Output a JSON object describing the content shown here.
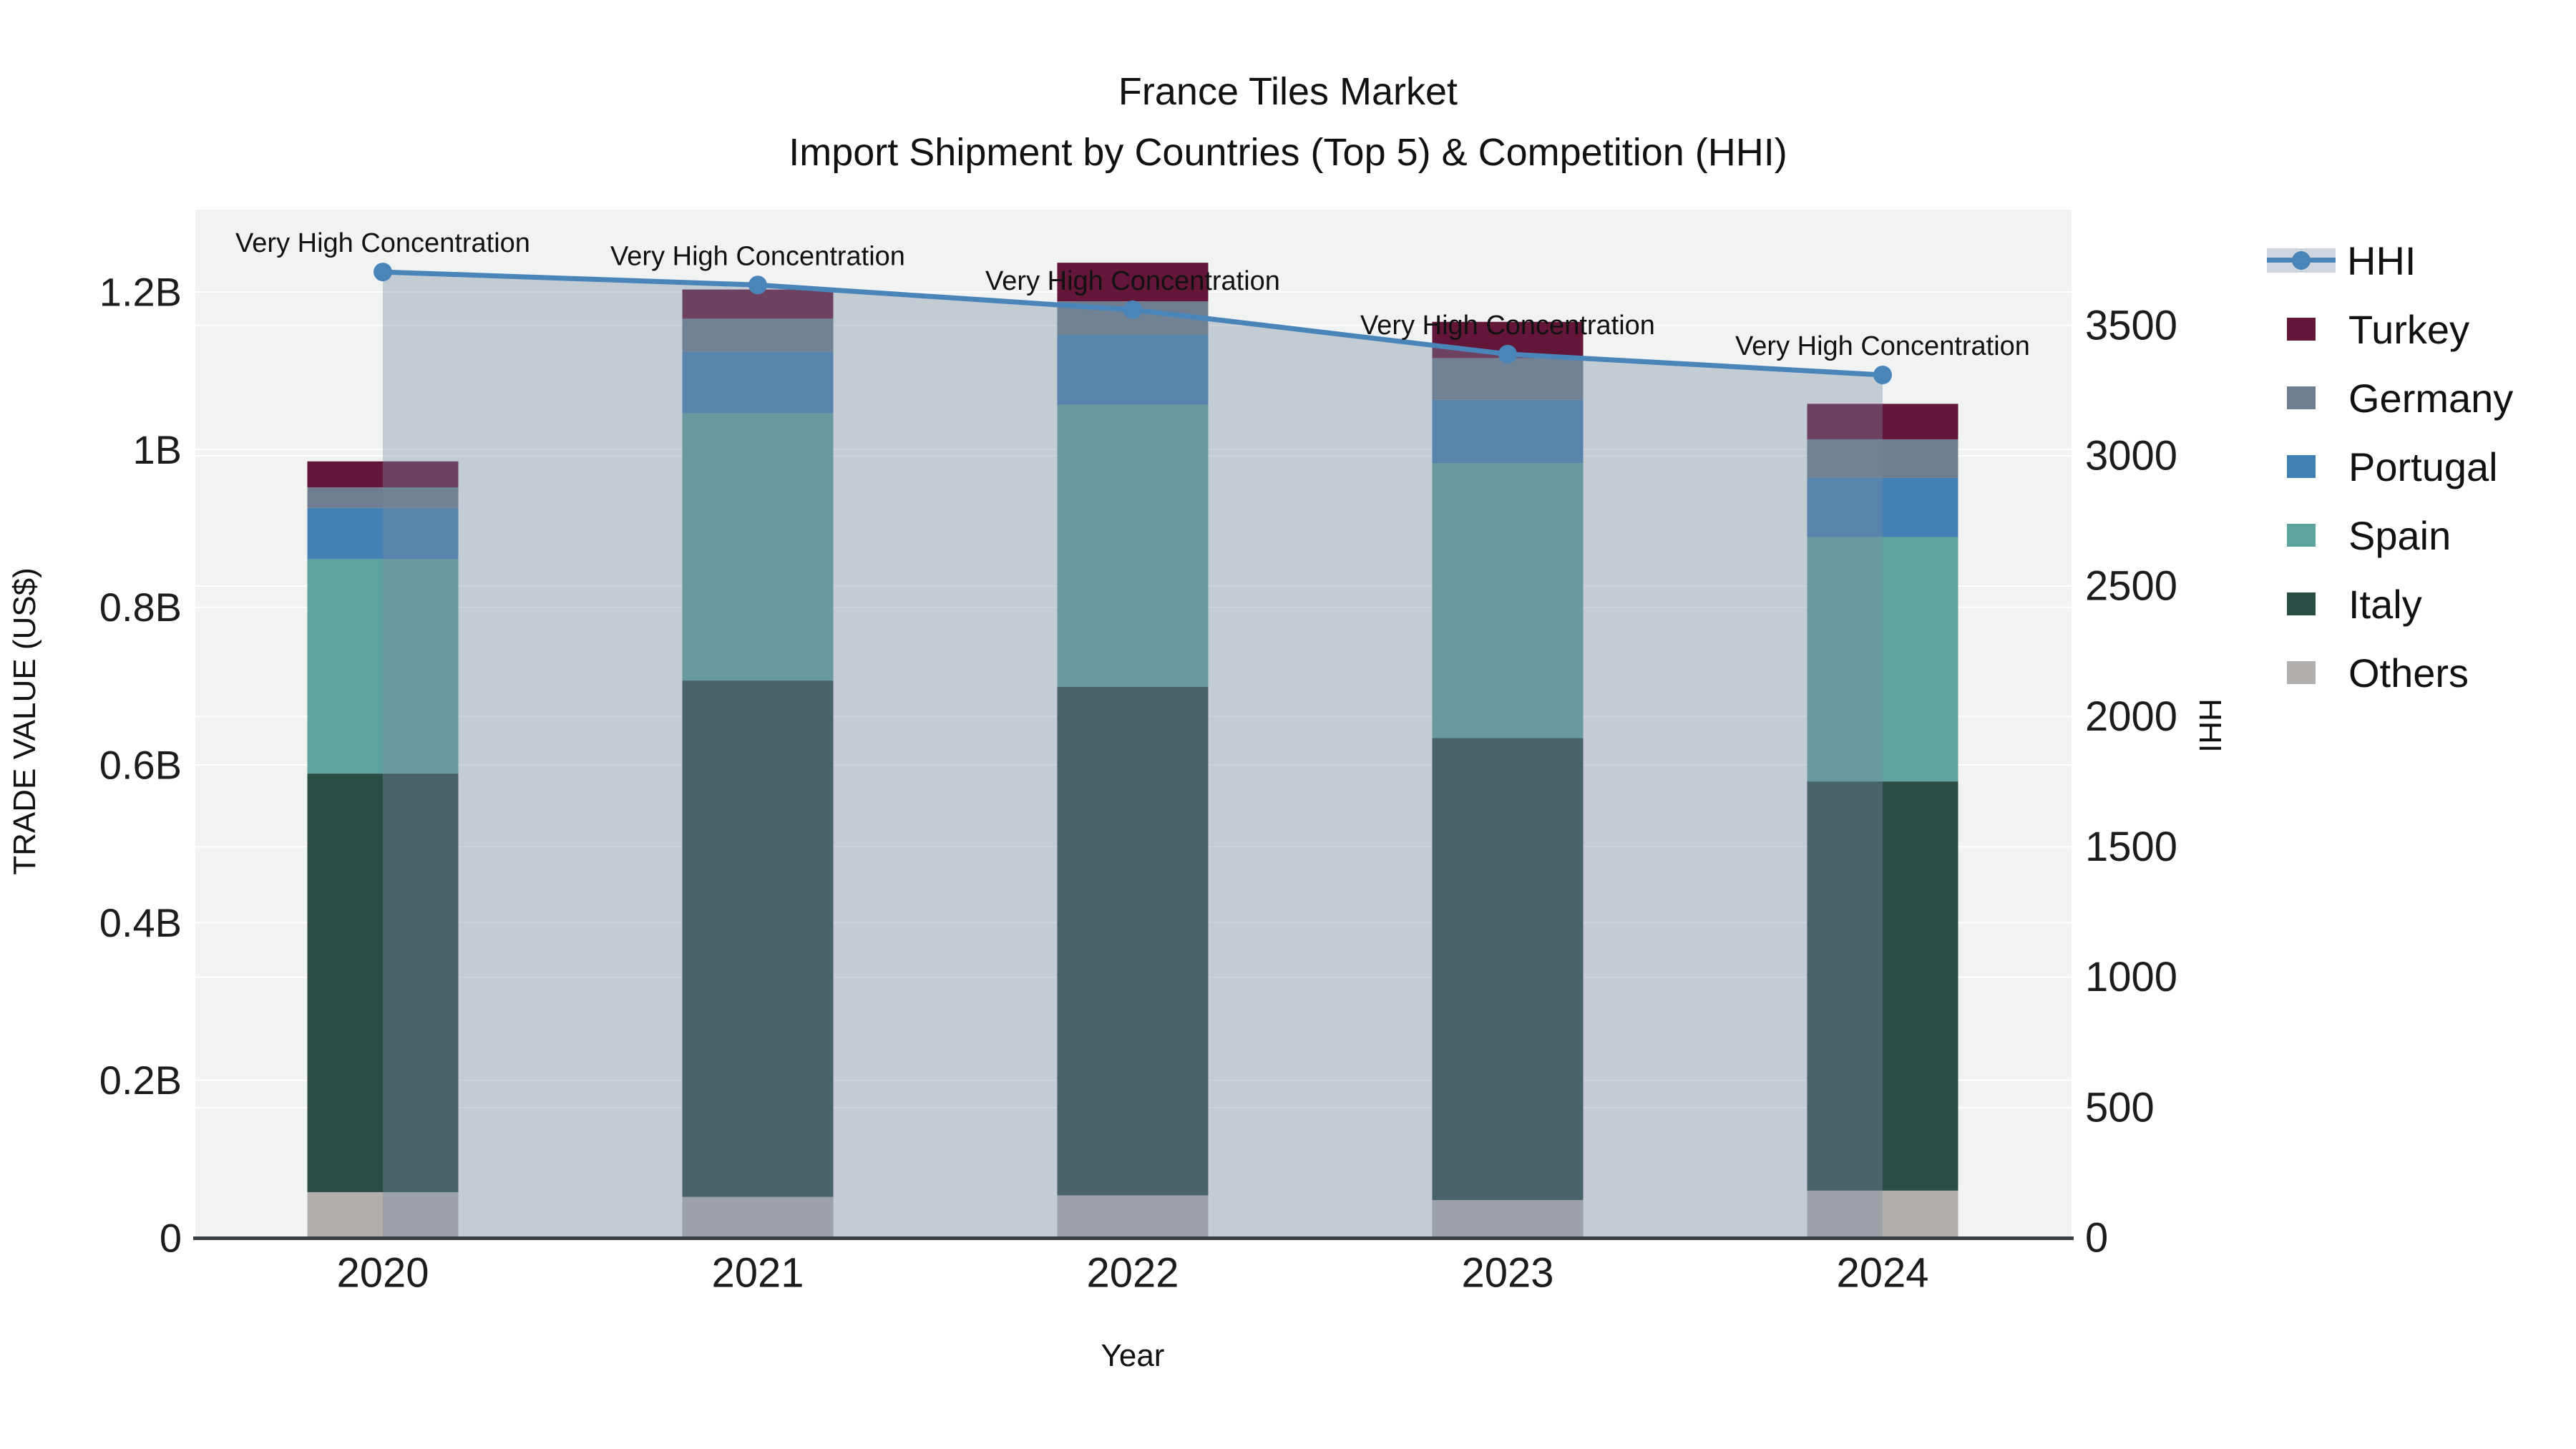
{
  "title": {
    "line1": "France Tiles Market",
    "line2": "Import Shipment by Countries (Top 5) & Competition (HHI)"
  },
  "chart_data": {
    "type": "bar+line",
    "subtype": "stacked bars (left axis) with line + area fill (right axis)",
    "categories": [
      "2020",
      "2021",
      "2022",
      "2023",
      "2024"
    ],
    "unit": "billion US$",
    "series": [
      {
        "name": "Others",
        "color": "#b1aeab",
        "values": [
          0.058,
          0.052,
          0.054,
          0.048,
          0.06
        ]
      },
      {
        "name": "Italy",
        "color": "#2c4d46",
        "values": [
          0.531,
          0.655,
          0.645,
          0.586,
          0.519
        ]
      },
      {
        "name": "Spain",
        "color": "#5fa3a0",
        "values": [
          0.272,
          0.339,
          0.358,
          0.349,
          0.31
        ]
      },
      {
        "name": "Portugal",
        "color": "#4380b4",
        "values": [
          0.065,
          0.078,
          0.088,
          0.08,
          0.075
        ]
      },
      {
        "name": "Germany",
        "color": "#6e7d8f",
        "values": [
          0.026,
          0.042,
          0.043,
          0.053,
          0.049
        ]
      },
      {
        "name": "Turkey",
        "color": "#641639",
        "values": [
          0.033,
          0.037,
          0.049,
          0.046,
          0.045
        ]
      }
    ],
    "stack_totals": [
      0.985,
      1.203,
      1.237,
      1.162,
      1.058
    ],
    "hhi": {
      "name": "HHI",
      "axis": "right",
      "values": [
        3705,
        3655,
        3560,
        3390,
        3310
      ],
      "line_color": "#4a85ba",
      "fill_color": "rgba(120,140,160,0.38)",
      "legend_swatch_color": "#cfd6e0",
      "marker": "circle"
    },
    "annotations": [
      {
        "category": "2020",
        "text": "Very High Concentration"
      },
      {
        "category": "2021",
        "text": "Very High Concentration"
      },
      {
        "category": "2022",
        "text": "Very High Concentration"
      },
      {
        "category": "2023",
        "text": "Very High Concentration"
      },
      {
        "category": "2024",
        "text": "Very High Concentration"
      }
    ],
    "x_axis": {
      "label": "Year"
    },
    "y_left": {
      "label": "TRADE VALUE (US$)",
      "tick_labels": [
        "0",
        "0.2B",
        "0.4B",
        "0.6B",
        "0.8B",
        "1B",
        "1.2B"
      ],
      "tick_values": [
        0,
        0.2,
        0.4,
        0.6,
        0.8,
        1.0,
        1.2
      ],
      "range": [
        0,
        1.3043
      ]
    },
    "y_right": {
      "label": "HHI",
      "tick_labels": [
        "0",
        "500",
        "1000",
        "1500",
        "2000",
        "2500",
        "3000",
        "3500"
      ],
      "tick_values": [
        0,
        500,
        1000,
        1500,
        2000,
        2500,
        3000,
        3500
      ],
      "range": [
        0,
        3944
      ]
    },
    "grid": true,
    "plot_background": "#f1f2f2",
    "gridline_color": "#ffffff",
    "axisline_color": "#3a3f47",
    "legend_position": "right"
  },
  "legend": {
    "items": [
      {
        "label": "HHI",
        "type": "line",
        "color": "#4a85ba",
        "bar_color": "#cfd6e0"
      },
      {
        "label": "Turkey",
        "type": "box",
        "color": "#641639"
      },
      {
        "label": "Germany",
        "type": "box",
        "color": "#6e7d8f"
      },
      {
        "label": "Portugal",
        "type": "box",
        "color": "#4380b4"
      },
      {
        "label": "Spain",
        "type": "box",
        "color": "#5fa3a0"
      },
      {
        "label": "Italy",
        "type": "box",
        "color": "#2c4d46"
      },
      {
        "label": "Others",
        "type": "box",
        "color": "#b1aeab"
      }
    ]
  }
}
